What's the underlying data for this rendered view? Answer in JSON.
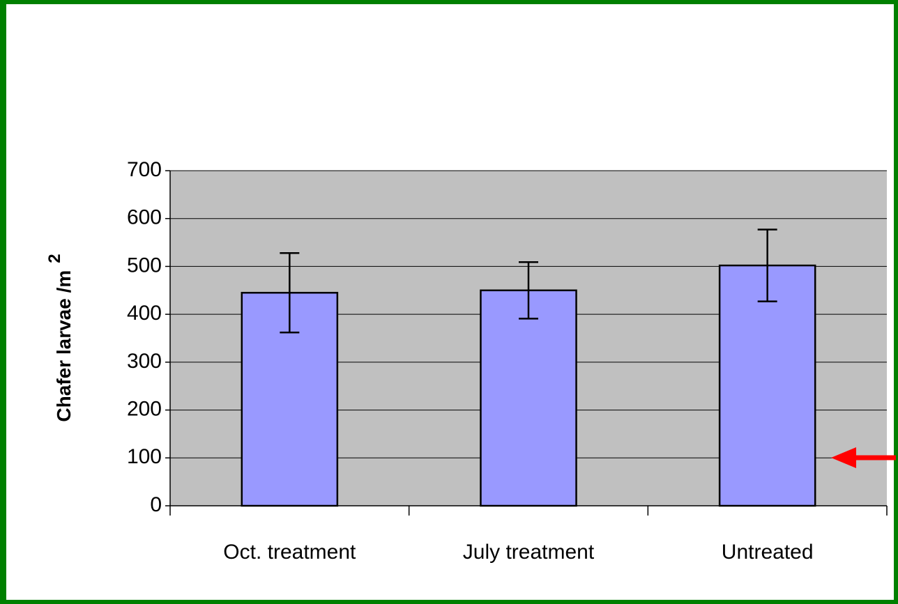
{
  "chart_data": {
    "type": "bar",
    "y_label": "Chafer larvae /m",
    "y_label_superscript": "2",
    "categories": [
      "Oct. treatment",
      "July treatment",
      "Untreated"
    ],
    "values": [
      445,
      450,
      502
    ],
    "errors": [
      83,
      59,
      75
    ],
    "color": "#9999ff",
    "ylim": [
      0,
      700
    ],
    "yticks": [
      0,
      100,
      200,
      300,
      400,
      500,
      600,
      700
    ],
    "grid": true
  }
}
